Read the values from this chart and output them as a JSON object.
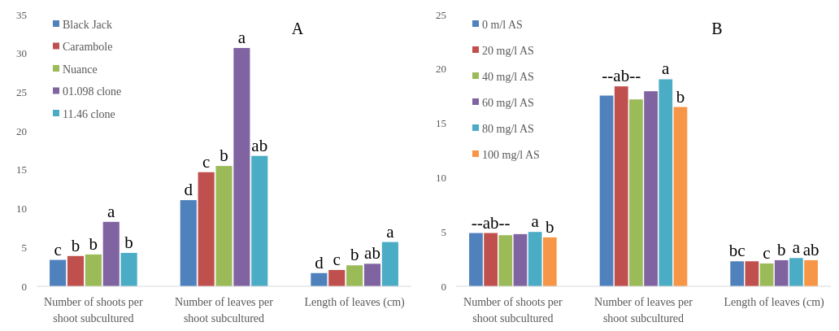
{
  "chart_data": [
    {
      "type": "bar",
      "title": "A",
      "categories": [
        "Number of shoots per shoot subcultured",
        "Number of leaves per shoot subcultured",
        "Length of leaves (cm)"
      ],
      "ylim": [
        0,
        35
      ],
      "yticks": [
        0,
        5,
        10,
        15,
        20,
        25,
        30,
        35
      ],
      "legend": "top left",
      "grid": false,
      "series": [
        {
          "name": "Black Jack",
          "color": "#4f81bd",
          "values": [
            3.4,
            11.1,
            1.7
          ],
          "value_labels": [
            "c",
            "d",
            "d"
          ]
        },
        {
          "name": "Carambole",
          "color": "#c0504d",
          "values": [
            3.9,
            14.7,
            2.1
          ],
          "value_labels": [
            "b",
            "c",
            "c"
          ]
        },
        {
          "name": "Nuance",
          "color": "#9bbb59",
          "values": [
            4.1,
            15.5,
            2.7
          ],
          "value_labels": [
            "b",
            "b",
            "b"
          ]
        },
        {
          "name": "01.098 clone",
          "color": "#8064a2",
          "values": [
            8.3,
            30.7,
            2.9
          ],
          "value_labels": [
            "a",
            "a",
            "ab"
          ]
        },
        {
          "name": "11.46 clone",
          "color": "#4bacc6",
          "values": [
            4.3,
            16.8,
            5.7
          ],
          "value_labels": [
            "b",
            "ab",
            "a"
          ]
        }
      ]
    },
    {
      "type": "bar",
      "title": "B",
      "categories": [
        "Number of shoots per shoot subcultured",
        "Number of leaves per shoot subcultured",
        "Length of leaves (cm)"
      ],
      "ylim": [
        0,
        25
      ],
      "yticks": [
        0,
        5,
        10,
        15,
        20,
        25
      ],
      "legend": "top left",
      "grid": false,
      "series": [
        {
          "name": "0 m/l AS",
          "color": "#4f81bd",
          "values": [
            4.9,
            17.55,
            2.3
          ],
          "value_labels": [
            null,
            null,
            "bc"
          ]
        },
        {
          "name": "20 mg/l AS",
          "color": "#c0504d",
          "values": [
            4.9,
            18.4,
            2.3
          ],
          "value_labels": [
            "--ab--",
            "--ab--",
            null
          ]
        },
        {
          "name": "40 mg/l AS",
          "color": "#9bbb59",
          "values": [
            4.7,
            17.2,
            2.1
          ],
          "value_labels": [
            null,
            null,
            "c"
          ]
        },
        {
          "name": "60 mg/l AS",
          "color": "#8064a2",
          "values": [
            4.8,
            17.95,
            2.4
          ],
          "value_labels": [
            null,
            null,
            "b"
          ]
        },
        {
          "name": "80 mg/l AS",
          "color": "#4bacc6",
          "values": [
            5.0,
            19.05,
            2.6
          ],
          "value_labels": [
            "a",
            "a",
            "a"
          ]
        },
        {
          "name": "100 mg/l AS",
          "color": "#f79646",
          "values": [
            4.5,
            16.5,
            2.4
          ],
          "value_labels": [
            "b",
            "b",
            "ab"
          ]
        }
      ]
    }
  ]
}
